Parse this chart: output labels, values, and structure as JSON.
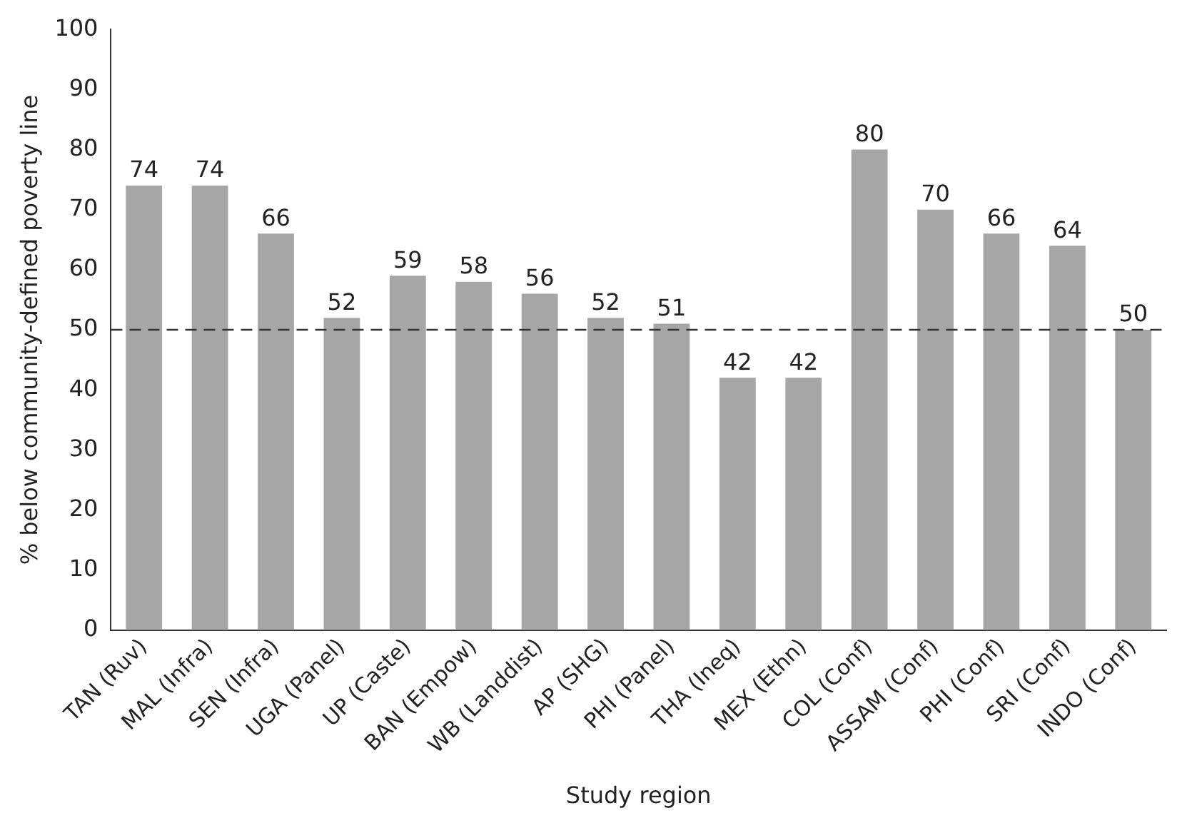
{
  "chart_data": {
    "type": "bar",
    "xlabel": "Study region",
    "ylabel": "% below community-defined poverty line",
    "categories": [
      "TAN (Ruv)",
      "MAL (Infra)",
      "SEN (Infra)",
      "UGA (Panel)",
      "UP (Caste)",
      "BAN (Empow)",
      "WB (Landdist)",
      "AP (SHG)",
      "PHI (Panel)",
      "THA (Ineq)",
      "MEX (Ethn)",
      "COL (Conf)",
      "ASSAM (Conf)",
      "PHI (Conf)",
      "SRI (Conf)",
      "INDO (Conf)"
    ],
    "values": [
      74,
      74,
      66,
      52,
      59,
      58,
      56,
      52,
      51,
      42,
      42,
      80,
      70,
      66,
      64,
      50
    ],
    "color": "#a6a6a6",
    "data_labels": true,
    "ylim": [
      0,
      100
    ],
    "yticks": [
      0,
      10,
      20,
      30,
      40,
      50,
      60,
      70,
      80,
      90,
      100
    ],
    "ref_lines": [
      {
        "axis": "y",
        "value": 50,
        "line_style": "dashed",
        "color": "#333333"
      }
    ],
    "grid": false,
    "legend": false
  }
}
